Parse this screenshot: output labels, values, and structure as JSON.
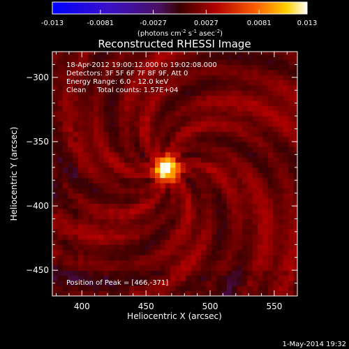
{
  "chart_data": {
    "type": "heatmap",
    "title": "Reconstructed RHESSI Image",
    "xlabel": "Heliocentric X (arcsec)",
    "ylabel": "Heliocentric Y (arcsec)",
    "xlim": [
      377,
      568
    ],
    "ylim": [
      -470,
      -280
    ],
    "xticks": [
      400,
      450,
      500,
      550
    ],
    "yticks": [
      -300,
      -350,
      -400,
      -450
    ],
    "colorbar": {
      "ticks": [
        "-0.013",
        "-0.0081",
        "-0.0027",
        "0.0027",
        "0.0081",
        "0.013"
      ],
      "range": [
        -0.013,
        0.013
      ],
      "unit_label_parts": [
        "(photons cm",
        "-2",
        " s",
        "-1",
        " asec",
        "-2",
        ")"
      ],
      "colormap": "blue-purple-red-yellow-white"
    },
    "info_lines": [
      "18-Apr-2012 19:00:12.000 to 19:02:08.000",
      "Detectors: 3F 5F 6F 7F 8F 9F, Att 0",
      "Energy Range: 6.0 - 12.0 keV",
      "Clean     Total counts: 1.57E+04"
    ],
    "peak_label": "Position of Peak = [466,-371]",
    "peak": [
      466,
      -371
    ],
    "peak_value": 0.013,
    "source_fwhm_arcsec": 16,
    "background_level": 0.0015,
    "timestamp": "1-May-2014 19:32"
  }
}
